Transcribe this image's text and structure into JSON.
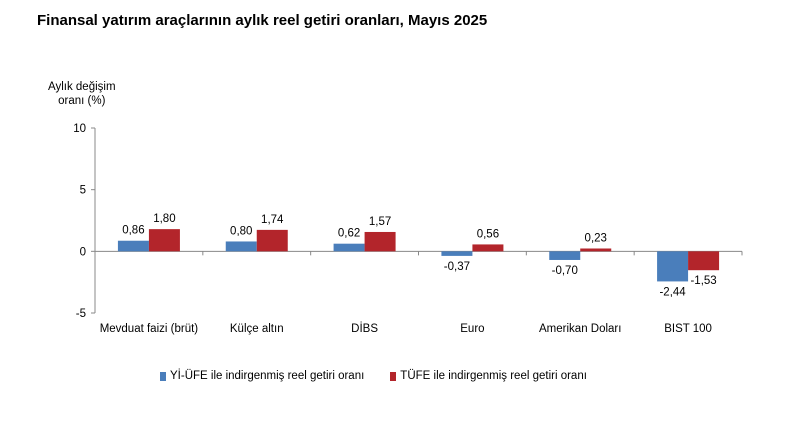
{
  "chart_data": {
    "type": "bar",
    "title": "Finansal yatırım araçlarının aylık reel getiri oranları, Mayıs 2025",
    "ylabel_line1": "Aylık değişim",
    "ylabel_line2": "oranı (%)",
    "xlabel": "",
    "ylim": [
      -5,
      10
    ],
    "yticks": [
      "10",
      "5",
      "0",
      "-5"
    ],
    "categories": [
      "Mevduat faizi (brüt)",
      "Külçe altın",
      "DİBS",
      "Euro",
      "Amerikan Doları",
      "BIST 100"
    ],
    "series": [
      {
        "name": "Yİ-ÜFE ile indirgenmiş reel getiri oranı",
        "color": "#4a7ebb",
        "values": [
          0.86,
          0.8,
          0.62,
          -0.37,
          -0.7,
          -2.44
        ],
        "labels": [
          "0,86",
          "0,80",
          "0,62",
          "-0,37",
          "-0,70",
          "-2,44"
        ]
      },
      {
        "name": "TÜFE ile indirgenmiş reel getiri oranı",
        "color": "#b3252b",
        "values": [
          1.8,
          1.74,
          1.57,
          0.56,
          0.23,
          -1.53
        ],
        "labels": [
          "1,80",
          "1,74",
          "1,57",
          "0,56",
          "0,23",
          "-1,53"
        ]
      }
    ],
    "grid": false,
    "legend_position": "bottom"
  }
}
